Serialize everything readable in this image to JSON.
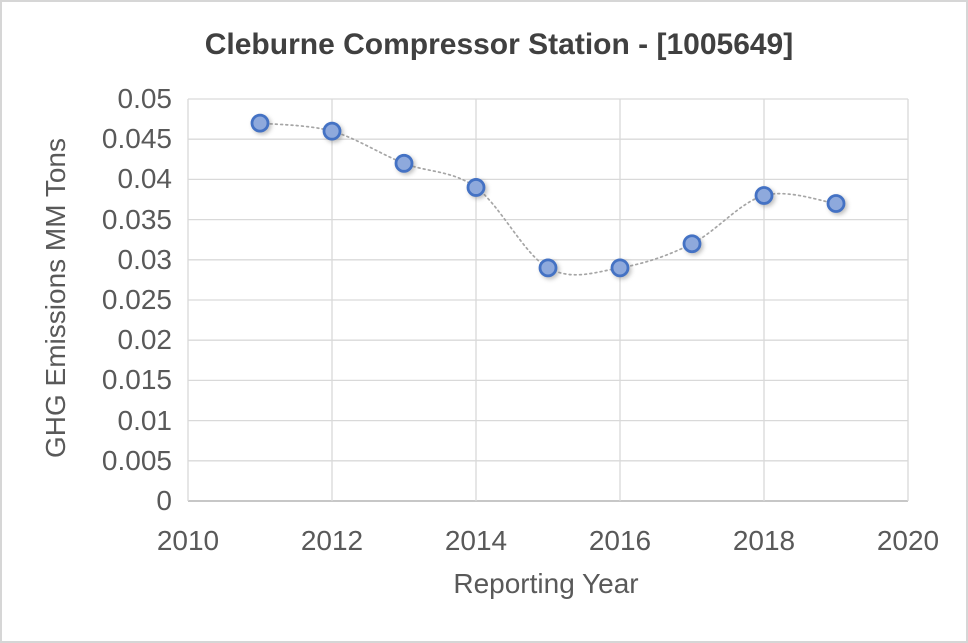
{
  "chart_data": {
    "type": "scatter",
    "title": "Cleburne Compressor Station - [1005649]",
    "xlabel": "Reporting Year",
    "ylabel": "GHG Emissions MM Tons",
    "x": [
      2011,
      2012,
      2013,
      2014,
      2015,
      2016,
      2017,
      2018,
      2019
    ],
    "values": [
      0.047,
      0.046,
      0.042,
      0.039,
      0.029,
      0.029,
      0.032,
      0.038,
      0.037
    ],
    "xlim": [
      2010,
      2020
    ],
    "ylim": [
      0,
      0.05
    ],
    "x_ticks": [
      {
        "label": "2010",
        "value": 2010
      },
      {
        "label": "2012",
        "value": 2012
      },
      {
        "label": "2014",
        "value": 2014
      },
      {
        "label": "2016",
        "value": 2016
      },
      {
        "label": "2018",
        "value": 2018
      },
      {
        "label": "2020",
        "value": 2020
      }
    ],
    "y_ticks": [
      {
        "label": "0",
        "value": 0
      },
      {
        "label": "0.005",
        "value": 0.005
      },
      {
        "label": "0.01",
        "value": 0.01
      },
      {
        "label": "0.015",
        "value": 0.015
      },
      {
        "label": "0.02",
        "value": 0.02
      },
      {
        "label": "0.025",
        "value": 0.025
      },
      {
        "label": "0.03",
        "value": 0.03
      },
      {
        "label": "0.035",
        "value": 0.035
      },
      {
        "label": "0.04",
        "value": 0.04
      },
      {
        "label": "0.045",
        "value": 0.045
      },
      {
        "label": "0.05",
        "value": 0.05
      }
    ],
    "grid": true,
    "legend": "none",
    "line_style": "dotted-smooth",
    "colors": {
      "marker_fill": "#8EA9DC",
      "marker_stroke": "#4472C4",
      "connector_line": "#A6A6A6",
      "gridline": "#D9D9D9",
      "axis_line": "#BFBFBF",
      "tick_text": "#595959",
      "title_text": "#404040",
      "frame_border": "#D6D6D6",
      "background": "#FFFFFF"
    }
  }
}
